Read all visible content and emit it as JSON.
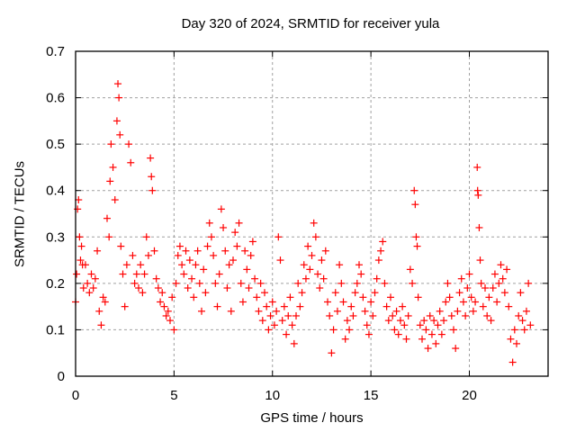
{
  "chart_data": {
    "type": "scatter",
    "title": "Day 320 of 2024, SRMTID for receiver yula",
    "xlabel": "GPS time / hours",
    "ylabel": "SRMTID / TECUs",
    "xlim": [
      0,
      24
    ],
    "ylim": [
      0,
      0.7
    ],
    "xticks": [
      0,
      5,
      10,
      15,
      20
    ],
    "xtick_labels": [
      "0",
      "5",
      "10",
      "15",
      "20"
    ],
    "yticks": [
      0,
      0.1,
      0.2,
      0.3,
      0.4,
      0.5,
      0.6,
      0.7
    ],
    "ytick_labels": [
      "0",
      "0.1",
      "0.2",
      "0.3",
      "0.4",
      "0.5",
      "0.6",
      "0.7"
    ],
    "grid": true,
    "marker": "+",
    "color": "#ff0000",
    "series": [
      {
        "name": "SRMTID",
        "points": [
          [
            0.0,
            0.16
          ],
          [
            0.05,
            0.22
          ],
          [
            0.1,
            0.36
          ],
          [
            0.15,
            0.38
          ],
          [
            0.2,
            0.3
          ],
          [
            0.25,
            0.25
          ],
          [
            0.3,
            0.28
          ],
          [
            0.35,
            0.24
          ],
          [
            0.4,
            0.19
          ],
          [
            0.5,
            0.24
          ],
          [
            0.6,
            0.2
          ],
          [
            0.7,
            0.18
          ],
          [
            0.8,
            0.22
          ],
          [
            0.9,
            0.19
          ],
          [
            1.0,
            0.21
          ],
          [
            1.1,
            0.27
          ],
          [
            1.2,
            0.14
          ],
          [
            1.3,
            0.11
          ],
          [
            1.4,
            0.17
          ],
          [
            1.5,
            0.16
          ],
          [
            1.6,
            0.34
          ],
          [
            1.7,
            0.3
          ],
          [
            1.75,
            0.42
          ],
          [
            1.8,
            0.5
          ],
          [
            1.9,
            0.45
          ],
          [
            2.0,
            0.38
          ],
          [
            2.1,
            0.55
          ],
          [
            2.15,
            0.63
          ],
          [
            2.2,
            0.6
          ],
          [
            2.25,
            0.52
          ],
          [
            2.3,
            0.28
          ],
          [
            2.4,
            0.22
          ],
          [
            2.5,
            0.15
          ],
          [
            2.6,
            0.24
          ],
          [
            2.7,
            0.5
          ],
          [
            2.8,
            0.46
          ],
          [
            2.9,
            0.26
          ],
          [
            3.0,
            0.2
          ],
          [
            3.1,
            0.22
          ],
          [
            3.2,
            0.19
          ],
          [
            3.3,
            0.24
          ],
          [
            3.4,
            0.18
          ],
          [
            3.5,
            0.22
          ],
          [
            3.6,
            0.3
          ],
          [
            3.7,
            0.26
          ],
          [
            3.8,
            0.47
          ],
          [
            3.85,
            0.43
          ],
          [
            3.9,
            0.4
          ],
          [
            4.0,
            0.27
          ],
          [
            4.1,
            0.21
          ],
          [
            4.2,
            0.19
          ],
          [
            4.3,
            0.16
          ],
          [
            4.4,
            0.18
          ],
          [
            4.5,
            0.15
          ],
          [
            4.6,
            0.13
          ],
          [
            4.7,
            0.14
          ],
          [
            4.8,
            0.12
          ],
          [
            4.9,
            0.17
          ],
          [
            5.0,
            0.1
          ],
          [
            5.1,
            0.2
          ],
          [
            5.2,
            0.26
          ],
          [
            5.3,
            0.28
          ],
          [
            5.4,
            0.24
          ],
          [
            5.5,
            0.22
          ],
          [
            5.6,
            0.27
          ],
          [
            5.7,
            0.19
          ],
          [
            5.8,
            0.25
          ],
          [
            5.9,
            0.21
          ],
          [
            6.0,
            0.17
          ],
          [
            6.1,
            0.24
          ],
          [
            6.2,
            0.27
          ],
          [
            6.3,
            0.2
          ],
          [
            6.4,
            0.14
          ],
          [
            6.5,
            0.23
          ],
          [
            6.6,
            0.18
          ],
          [
            6.7,
            0.28
          ],
          [
            6.8,
            0.33
          ],
          [
            6.9,
            0.3
          ],
          [
            7.0,
            0.26
          ],
          [
            7.1,
            0.2
          ],
          [
            7.2,
            0.15
          ],
          [
            7.3,
            0.22
          ],
          [
            7.4,
            0.36
          ],
          [
            7.5,
            0.32
          ],
          [
            7.6,
            0.27
          ],
          [
            7.7,
            0.19
          ],
          [
            7.8,
            0.24
          ],
          [
            7.9,
            0.14
          ],
          [
            8.0,
            0.25
          ],
          [
            8.1,
            0.31
          ],
          [
            8.2,
            0.28
          ],
          [
            8.3,
            0.33
          ],
          [
            8.4,
            0.2
          ],
          [
            8.5,
            0.16
          ],
          [
            8.6,
            0.27
          ],
          [
            8.7,
            0.23
          ],
          [
            8.8,
            0.19
          ],
          [
            8.9,
            0.26
          ],
          [
            9.0,
            0.29
          ],
          [
            9.1,
            0.21
          ],
          [
            9.2,
            0.17
          ],
          [
            9.3,
            0.14
          ],
          [
            9.4,
            0.2
          ],
          [
            9.5,
            0.12
          ],
          [
            9.6,
            0.18
          ],
          [
            9.7,
            0.15
          ],
          [
            9.8,
            0.1
          ],
          [
            9.9,
            0.13
          ],
          [
            10.0,
            0.16
          ],
          [
            10.1,
            0.11
          ],
          [
            10.2,
            0.14
          ],
          [
            10.3,
            0.3
          ],
          [
            10.4,
            0.25
          ],
          [
            10.5,
            0.12
          ],
          [
            10.6,
            0.15
          ],
          [
            10.7,
            0.09
          ],
          [
            10.8,
            0.13
          ],
          [
            10.9,
            0.17
          ],
          [
            11.0,
            0.11
          ],
          [
            11.1,
            0.07
          ],
          [
            11.2,
            0.13
          ],
          [
            11.3,
            0.2
          ],
          [
            11.4,
            0.15
          ],
          [
            11.5,
            0.18
          ],
          [
            11.6,
            0.24
          ],
          [
            11.7,
            0.21
          ],
          [
            11.8,
            0.28
          ],
          [
            11.9,
            0.23
          ],
          [
            12.0,
            0.26
          ],
          [
            12.1,
            0.33
          ],
          [
            12.2,
            0.3
          ],
          [
            12.3,
            0.22
          ],
          [
            12.4,
            0.19
          ],
          [
            12.5,
            0.25
          ],
          [
            12.6,
            0.21
          ],
          [
            12.7,
            0.27
          ],
          [
            12.8,
            0.16
          ],
          [
            12.9,
            0.13
          ],
          [
            13.0,
            0.05
          ],
          [
            13.1,
            0.1
          ],
          [
            13.2,
            0.18
          ],
          [
            13.3,
            0.14
          ],
          [
            13.4,
            0.24
          ],
          [
            13.5,
            0.2
          ],
          [
            13.6,
            0.16
          ],
          [
            13.7,
            0.08
          ],
          [
            13.8,
            0.12
          ],
          [
            13.9,
            0.1
          ],
          [
            14.0,
            0.15
          ],
          [
            14.1,
            0.13
          ],
          [
            14.2,
            0.18
          ],
          [
            14.3,
            0.2
          ],
          [
            14.4,
            0.24
          ],
          [
            14.5,
            0.22
          ],
          [
            14.6,
            0.17
          ],
          [
            14.7,
            0.14
          ],
          [
            14.8,
            0.11
          ],
          [
            14.9,
            0.09
          ],
          [
            15.0,
            0.16
          ],
          [
            15.1,
            0.13
          ],
          [
            15.2,
            0.18
          ],
          [
            15.3,
            0.21
          ],
          [
            15.4,
            0.25
          ],
          [
            15.5,
            0.27
          ],
          [
            15.6,
            0.29
          ],
          [
            15.7,
            0.2
          ],
          [
            15.8,
            0.15
          ],
          [
            15.9,
            0.12
          ],
          [
            16.0,
            0.17
          ],
          [
            16.1,
            0.13
          ],
          [
            16.2,
            0.1
          ],
          [
            16.3,
            0.14
          ],
          [
            16.4,
            0.09
          ],
          [
            16.5,
            0.12
          ],
          [
            16.6,
            0.15
          ],
          [
            16.7,
            0.11
          ],
          [
            16.8,
            0.08
          ],
          [
            16.9,
            0.13
          ],
          [
            17.0,
            0.23
          ],
          [
            17.1,
            0.2
          ],
          [
            17.2,
            0.4
          ],
          [
            17.25,
            0.37
          ],
          [
            17.3,
            0.3
          ],
          [
            17.35,
            0.28
          ],
          [
            17.4,
            0.17
          ],
          [
            17.5,
            0.11
          ],
          [
            17.6,
            0.08
          ],
          [
            17.7,
            0.12
          ],
          [
            17.8,
            0.1
          ],
          [
            17.9,
            0.06
          ],
          [
            18.0,
            0.13
          ],
          [
            18.1,
            0.09
          ],
          [
            18.2,
            0.12
          ],
          [
            18.3,
            0.07
          ],
          [
            18.4,
            0.11
          ],
          [
            18.5,
            0.14
          ],
          [
            18.6,
            0.09
          ],
          [
            18.7,
            0.12
          ],
          [
            18.8,
            0.16
          ],
          [
            18.9,
            0.2
          ],
          [
            19.0,
            0.17
          ],
          [
            19.1,
            0.13
          ],
          [
            19.2,
            0.1
          ],
          [
            19.3,
            0.06
          ],
          [
            19.4,
            0.14
          ],
          [
            19.5,
            0.18
          ],
          [
            19.6,
            0.21
          ],
          [
            19.7,
            0.16
          ],
          [
            19.8,
            0.13
          ],
          [
            19.9,
            0.19
          ],
          [
            20.0,
            0.22
          ],
          [
            20.1,
            0.17
          ],
          [
            20.2,
            0.14
          ],
          [
            20.3,
            0.16
          ],
          [
            20.4,
            0.45
          ],
          [
            20.42,
            0.4
          ],
          [
            20.45,
            0.39
          ],
          [
            20.5,
            0.32
          ],
          [
            20.55,
            0.25
          ],
          [
            20.6,
            0.2
          ],
          [
            20.7,
            0.15
          ],
          [
            20.8,
            0.19
          ],
          [
            20.9,
            0.13
          ],
          [
            21.0,
            0.17
          ],
          [
            21.1,
            0.12
          ],
          [
            21.2,
            0.19
          ],
          [
            21.3,
            0.22
          ],
          [
            21.4,
            0.16
          ],
          [
            21.5,
            0.2
          ],
          [
            21.6,
            0.24
          ],
          [
            21.7,
            0.21
          ],
          [
            21.8,
            0.18
          ],
          [
            21.9,
            0.23
          ],
          [
            22.0,
            0.15
          ],
          [
            22.1,
            0.08
          ],
          [
            22.2,
            0.03
          ],
          [
            22.3,
            0.1
          ],
          [
            22.4,
            0.07
          ],
          [
            22.5,
            0.13
          ],
          [
            22.6,
            0.18
          ],
          [
            22.7,
            0.12
          ],
          [
            22.8,
            0.1
          ],
          [
            22.9,
            0.14
          ],
          [
            23.0,
            0.2
          ],
          [
            23.1,
            0.11
          ]
        ]
      }
    ]
  }
}
